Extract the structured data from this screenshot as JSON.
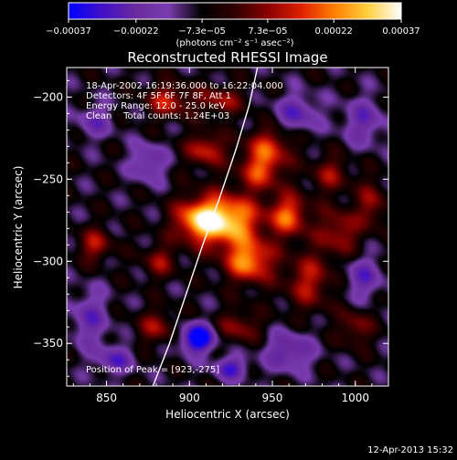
{
  "chart_data": {
    "type": "heatmap",
    "title": "Reconstructed RHESSI Image",
    "xlabel": "Heliocentric X (arcsec)",
    "ylabel": "Heliocentric Y (arcsec)",
    "xlim": [
      826,
      1020
    ],
    "ylim": [
      -376,
      -182
    ],
    "x_ticks": [
      850,
      900,
      950,
      1000
    ],
    "y_ticks": [
      -200,
      -250,
      -300,
      -350
    ],
    "x_tick_labels": [
      "850",
      "900",
      "950",
      "1000"
    ],
    "y_tick_labels": [
      "−200",
      "−250",
      "−300",
      "−350"
    ],
    "colorbar": {
      "min": -0.00037,
      "max": 0.00037,
      "ticks": [
        -0.00037,
        -0.00022,
        -7.3e-05,
        7.3e-05,
        0.00022,
        0.00037
      ],
      "tick_labels": [
        "−0.00037",
        "−0.00022",
        "−7.3e−05",
        "7.3e−05",
        "0.00022",
        "0.00037"
      ],
      "unit_label": "(photons cm⁻² s⁻¹ asec⁻²)",
      "colors": [
        "#0000ff",
        "#4010c8",
        "#6a2a9e",
        "#7a3cb0",
        "#000000",
        "#300000",
        "#8a0000",
        "#e02000",
        "#ff8000",
        "#ffd040",
        "#ffffff"
      ]
    },
    "annotations": {
      "time_range": "18-Apr-2002 16:19:36.000 to 16:22:04.000",
      "detectors": "Detectors: 4F 5F 6F 7F 8F, Att 1",
      "energy_range": "Energy Range: 12.0 - 25.0 keV",
      "clean_counts": "Clean    Total counts: 1.24E+03",
      "peak_position": "Position of Peak = [923,-275]"
    },
    "peak": {
      "x": 923,
      "y": -275
    },
    "sources": [
      {
        "x": 923,
        "y": -275,
        "sx": 14,
        "sy": 11,
        "amp": 1.0
      },
      {
        "x": 936,
        "y": -300,
        "sx": 10,
        "sy": 9,
        "amp": 0.85
      },
      {
        "x": 960,
        "y": -272,
        "sx": 8,
        "sy": 9,
        "amp": 0.72
      },
      {
        "x": 905,
        "y": -275,
        "sx": 10,
        "sy": 9,
        "amp": 0.72
      },
      {
        "x": 943,
        "y": -245,
        "sx": 9,
        "sy": 8,
        "amp": 0.62
      },
      {
        "x": 948,
        "y": -230,
        "sx": 10,
        "sy": 8,
        "amp": 0.55
      },
      {
        "x": 910,
        "y": -232,
        "sx": 8,
        "sy": 7,
        "amp": 0.58
      },
      {
        "x": 887,
        "y": -202,
        "sx": 9,
        "sy": 7,
        "amp": 0.55
      },
      {
        "x": 918,
        "y": -202,
        "sx": 10,
        "sy": 6,
        "amp": 0.45
      },
      {
        "x": 990,
        "y": -282,
        "sx": 9,
        "sy": 10,
        "amp": 0.48
      },
      {
        "x": 972,
        "y": -312,
        "sx": 10,
        "sy": 12,
        "amp": 0.5
      },
      {
        "x": 985,
        "y": -247,
        "sx": 8,
        "sy": 8,
        "amp": 0.4
      },
      {
        "x": 1010,
        "y": -265,
        "sx": 6,
        "sy": 10,
        "amp": 0.42
      },
      {
        "x": 882,
        "y": -300,
        "sx": 7,
        "sy": 7,
        "amp": 0.4
      },
      {
        "x": 843,
        "y": -290,
        "sx": 7,
        "sy": 7,
        "amp": 0.48
      },
      {
        "x": 880,
        "y": -340,
        "sx": 8,
        "sy": 7,
        "amp": 0.42
      },
      {
        "x": 930,
        "y": -340,
        "sx": 9,
        "sy": 7,
        "amp": 0.4
      },
      {
        "x": 1000,
        "y": -340,
        "sx": 7,
        "sy": 8,
        "amp": 0.38
      },
      {
        "x": 843,
        "y": -215,
        "sx": 8,
        "sy": 7,
        "amp": -0.35
      },
      {
        "x": 875,
        "y": -240,
        "sx": 7,
        "sy": 8,
        "amp": -0.45
      },
      {
        "x": 965,
        "y": -210,
        "sx": 9,
        "sy": 8,
        "amp": -0.45
      },
      {
        "x": 1005,
        "y": -215,
        "sx": 9,
        "sy": 10,
        "amp": -0.4
      },
      {
        "x": 840,
        "y": -335,
        "sx": 8,
        "sy": 12,
        "amp": -0.4
      },
      {
        "x": 905,
        "y": -347,
        "sx": 7,
        "sy": 6,
        "amp": -0.95
      },
      {
        "x": 960,
        "y": -355,
        "sx": 10,
        "sy": 8,
        "amp": -0.5
      },
      {
        "x": 1005,
        "y": -310,
        "sx": 8,
        "sy": 9,
        "amp": -0.42
      },
      {
        "x": 925,
        "y": -365,
        "sx": 7,
        "sy": 5,
        "amp": -0.55
      },
      {
        "x": 855,
        "y": -360,
        "sx": 8,
        "sy": 6,
        "amp": -0.45
      }
    ],
    "limb_curve": [
      [
        878,
        -376
      ],
      [
        888,
        -350
      ],
      [
        898,
        -320
      ],
      [
        908,
        -290
      ],
      [
        918,
        -262
      ],
      [
        928,
        -232
      ],
      [
        936,
        -205
      ],
      [
        941,
        -182
      ]
    ]
  },
  "footer": {
    "timestamp": "12-Apr-2013 15:32"
  }
}
